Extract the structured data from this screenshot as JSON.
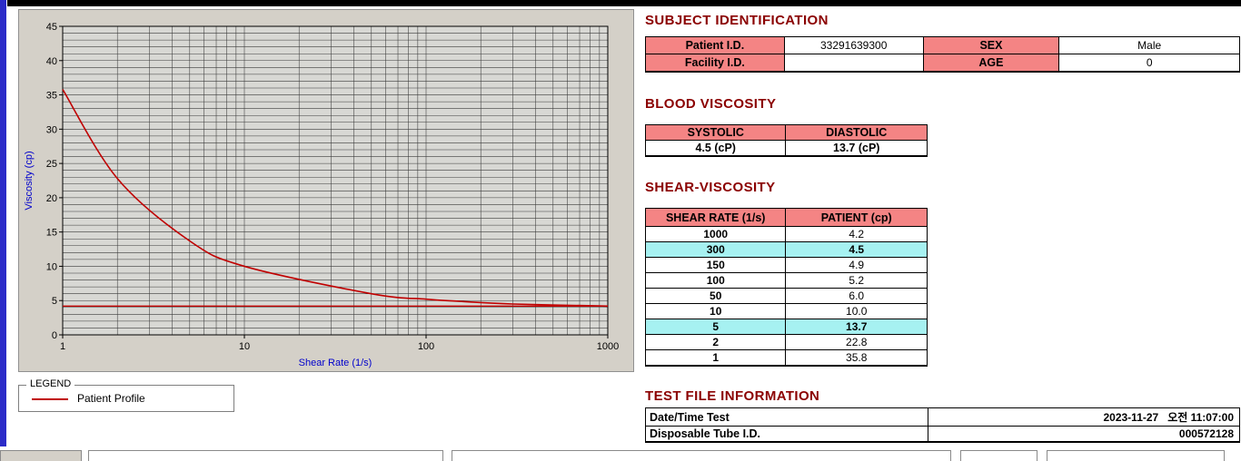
{
  "colors": {
    "heading": "#8b0000",
    "header_bg": "#f48484",
    "highlight_bg": "#a6f1f1",
    "accent_red": "#c00000",
    "axis_blue": "#0000cc",
    "panel_bg": "#d4d0c8",
    "plot_bg": "#d8d8d4",
    "left_strip": "#2b2bc8"
  },
  "chart_data": {
    "type": "line",
    "title": "",
    "xlabel": "Shear Rate (1/s)",
    "ylabel": "Viscosity (cp)",
    "x_scale": "log",
    "xlim": [
      1,
      1000
    ],
    "ylim": [
      0,
      45
    ],
    "y_tick_step": 5,
    "y_grid_step": 1,
    "x_ticks": [
      1,
      10,
      100,
      1000
    ],
    "grid": true,
    "series": [
      {
        "name": "Patient Profile",
        "color": "#c00000",
        "x": [
          1,
          2,
          5,
          10,
          50,
          100,
          150,
          300,
          1000
        ],
        "y": [
          35.8,
          22.8,
          13.7,
          10.0,
          6.0,
          5.2,
          4.9,
          4.5,
          4.2
        ]
      }
    ],
    "hline": {
      "y": 4.2,
      "color": "#c00000"
    },
    "legend": {
      "title": "LEGEND",
      "position": "below-left",
      "entries": [
        {
          "label": "Patient Profile",
          "color": "#c00000"
        }
      ]
    }
  },
  "subject": {
    "title": "SUBJECT IDENTIFICATION",
    "rows": [
      {
        "label1": "Patient I.D.",
        "value1": "33291639300",
        "label2": "SEX",
        "value2": "Male"
      },
      {
        "label1": "Facility I.D.",
        "value1": "",
        "label2": "AGE",
        "value2": "0"
      }
    ]
  },
  "blood": {
    "title": "BLOOD VISCOSITY",
    "headers": [
      "SYSTOLIC",
      "DIASTOLIC"
    ],
    "values": [
      "4.5 (cP)",
      "13.7 (cP)"
    ]
  },
  "shear": {
    "title": "SHEAR-VISCOSITY",
    "headers": [
      "SHEAR RATE (1/s)",
      "PATIENT (cp)"
    ],
    "rows": [
      {
        "rate": "1000",
        "value": "4.2",
        "highlight": false
      },
      {
        "rate": "300",
        "value": "4.5",
        "highlight": true
      },
      {
        "rate": "150",
        "value": "4.9",
        "highlight": false
      },
      {
        "rate": "100",
        "value": "5.2",
        "highlight": false
      },
      {
        "rate": "50",
        "value": "6.0",
        "highlight": false
      },
      {
        "rate": "10",
        "value": "10.0",
        "highlight": false
      },
      {
        "rate": "5",
        "value": "13.7",
        "highlight": true
      },
      {
        "rate": "2",
        "value": "22.8",
        "highlight": false
      },
      {
        "rate": "1",
        "value": "35.8",
        "highlight": false
      }
    ]
  },
  "testfile": {
    "title": "TEST FILE INFORMATION",
    "rows": [
      {
        "label": "Date/Time Test",
        "value": "2023-11-27   오전 11:07:00"
      },
      {
        "label": "Disposable Tube I.D.",
        "value": "000572128"
      }
    ]
  }
}
